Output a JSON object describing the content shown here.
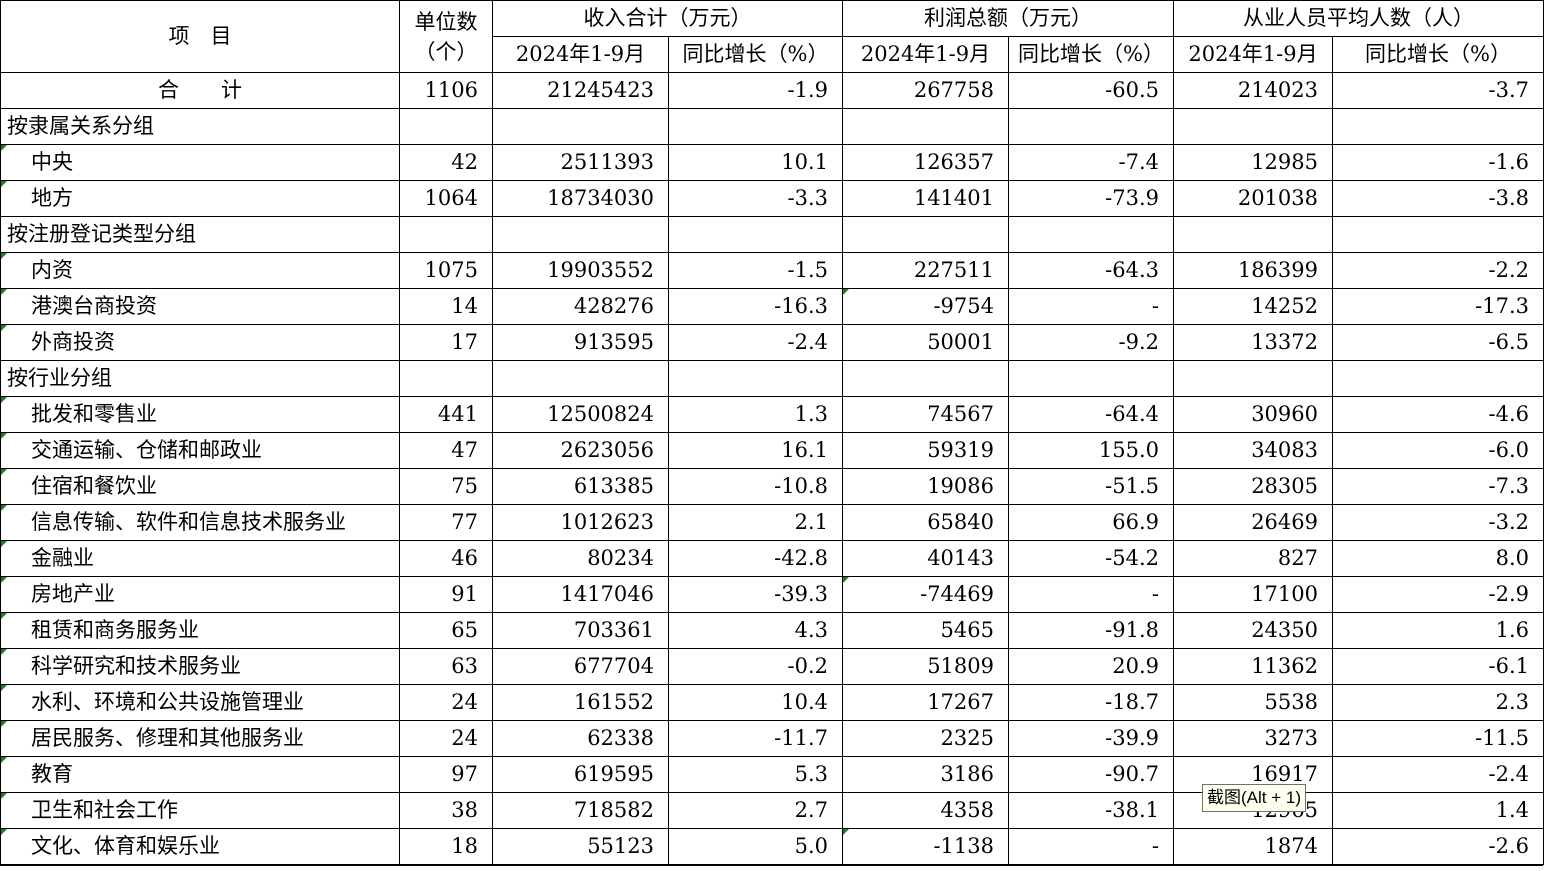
{
  "header": {
    "item_label": "项　目",
    "units_label_line1": "单位数",
    "units_label_line2": "（个）",
    "groups": [
      {
        "title": "收入合计（万元）",
        "sub1": "2024年1-9月",
        "sub2": "同比增长（%）"
      },
      {
        "title": "利润总额（万元）",
        "sub1": "2024年1-9月",
        "sub2": "同比增长（%）"
      },
      {
        "title": "从业人员平均人数（人）",
        "sub1": "2024年1-9月",
        "sub2": "同比增长（%）"
      }
    ]
  },
  "total": {
    "name": "合　　计",
    "units": "1106",
    "rev": "21245423",
    "rev_g": "-1.9",
    "profit": "267758",
    "profit_g": "-60.5",
    "emp": "214023",
    "emp_g": "-3.7"
  },
  "rows": [
    {
      "name": "按隶属关系分组",
      "group": true
    },
    {
      "name": "中央",
      "units": "42",
      "rev": "2511393",
      "rev_g": "10.1",
      "profit": "126357",
      "profit_g": "-7.4",
      "emp": "12985",
      "emp_g": "-1.6"
    },
    {
      "name": "地方",
      "units": "1064",
      "rev": "18734030",
      "rev_g": "-3.3",
      "profit": "141401",
      "profit_g": "-73.9",
      "emp": "201038",
      "emp_g": "-3.8"
    },
    {
      "name": "按注册登记类型分组",
      "group": true
    },
    {
      "name": "内资",
      "units": "1075",
      "rev": "19903552",
      "rev_g": "-1.5",
      "profit": "227511",
      "profit_g": "-64.3",
      "emp": "186399",
      "emp_g": "-2.2"
    },
    {
      "name": "港澳台商投资",
      "units": "14",
      "rev": "428276",
      "rev_g": "-16.3",
      "profit": "-9754",
      "profit_g": "-",
      "emp": "14252",
      "emp_g": "-17.3"
    },
    {
      "name": "外商投资",
      "units": "17",
      "rev": "913595",
      "rev_g": "-2.4",
      "profit": "50001",
      "profit_g": "-9.2",
      "emp": "13372",
      "emp_g": "-6.5"
    },
    {
      "name": "按行业分组",
      "group": true
    },
    {
      "name": "批发和零售业",
      "units": "441",
      "rev": "12500824",
      "rev_g": "1.3",
      "profit": "74567",
      "profit_g": "-64.4",
      "emp": "30960",
      "emp_g": "-4.6"
    },
    {
      "name": "交通运输、仓储和邮政业",
      "units": "47",
      "rev": "2623056",
      "rev_g": "16.1",
      "profit": "59319",
      "profit_g": "155.0",
      "emp": "34083",
      "emp_g": "-6.0"
    },
    {
      "name": "住宿和餐饮业",
      "units": "75",
      "rev": "613385",
      "rev_g": "-10.8",
      "profit": "19086",
      "profit_g": "-51.5",
      "emp": "28305",
      "emp_g": "-7.3"
    },
    {
      "name": "信息传输、软件和信息技术服务业",
      "units": "77",
      "rev": "1012623",
      "rev_g": "2.1",
      "profit": "65840",
      "profit_g": "66.9",
      "emp": "26469",
      "emp_g": "-3.2"
    },
    {
      "name": "金融业",
      "units": "46",
      "rev": "80234",
      "rev_g": "-42.8",
      "profit": "40143",
      "profit_g": "-54.2",
      "emp": "827",
      "emp_g": "8.0"
    },
    {
      "name": "房地产业",
      "units": "91",
      "rev": "1417046",
      "rev_g": "-39.3",
      "profit": "-74469",
      "profit_g": "-",
      "emp": "17100",
      "emp_g": "-2.9"
    },
    {
      "name": "租赁和商务服务业",
      "units": "65",
      "rev": "703361",
      "rev_g": "4.3",
      "profit": "5465",
      "profit_g": "-91.8",
      "emp": "24350",
      "emp_g": "1.6"
    },
    {
      "name": "科学研究和技术服务业",
      "units": "63",
      "rev": "677704",
      "rev_g": "-0.2",
      "profit": "51809",
      "profit_g": "20.9",
      "emp": "11362",
      "emp_g": "-6.1"
    },
    {
      "name": "水利、环境和公共设施管理业",
      "units": "24",
      "rev": "161552",
      "rev_g": "10.4",
      "profit": "17267",
      "profit_g": "-18.7",
      "emp": "5538",
      "emp_g": "2.3"
    },
    {
      "name": "居民服务、修理和其他服务业",
      "units": "24",
      "rev": "62338",
      "rev_g": "-11.7",
      "profit": "2325",
      "profit_g": "-39.9",
      "emp": "3273",
      "emp_g": "-11.5"
    },
    {
      "name": "教育",
      "units": "97",
      "rev": "619595",
      "rev_g": "5.3",
      "profit": "3186",
      "profit_g": "-90.7",
      "emp": "16917",
      "emp_g": "-2.4"
    },
    {
      "name": "卫生和社会工作",
      "units": "38",
      "rev": "718582",
      "rev_g": "2.7",
      "profit": "4358",
      "profit_g": "-38.1",
      "emp": "12965",
      "emp_g": "1.4"
    },
    {
      "name": "文化、体育和娱乐业",
      "units": "18",
      "rev": "55123",
      "rev_g": "5.0",
      "profit": "-1138",
      "profit_g": "-",
      "emp": "1874",
      "emp_g": "-2.6"
    }
  ],
  "tooltip": "截图(Alt + 1)",
  "marker_color": "#1e7a2e"
}
